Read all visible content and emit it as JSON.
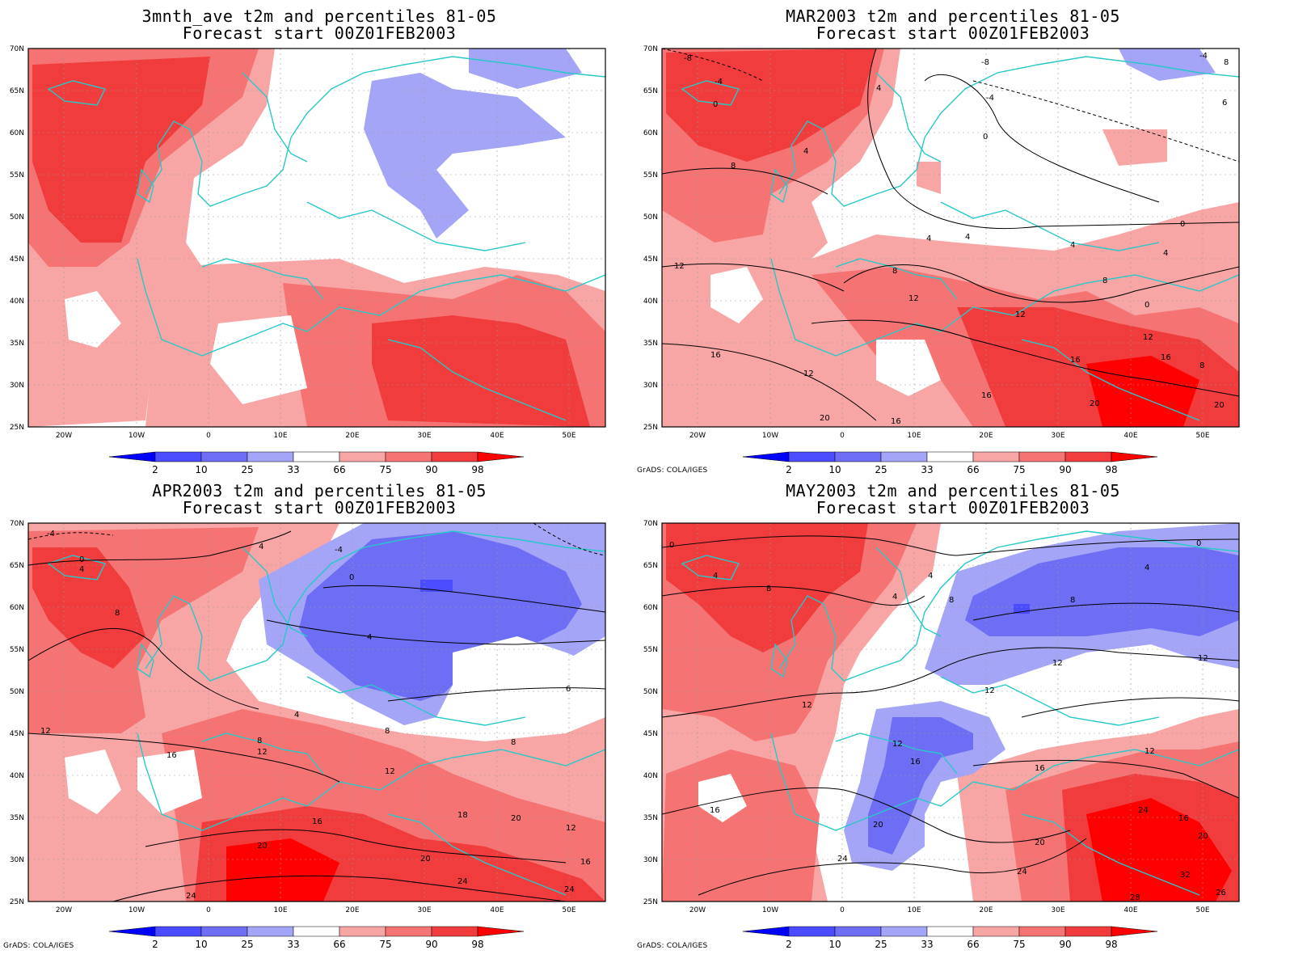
{
  "colors": {
    "p2": "#0000ff",
    "p10": "#4b4bff",
    "p25": "#6e6ef5",
    "p33": "#a5a5f8",
    "normal": "#ffffff",
    "p66": "#f8a5a5",
    "p75": "#f57373",
    "p90": "#f03c3c",
    "p98": "#ff0000",
    "coast": "#28c8c8",
    "contour": "#000000",
    "grid": "#999999"
  },
  "axes": {
    "lat_labels": [
      "70N",
      "65N",
      "60N",
      "55N",
      "50N",
      "45N",
      "40N",
      "35N",
      "30N",
      "25N"
    ],
    "lon_labels": [
      "20W",
      "10W",
      "0",
      "10E",
      "20E",
      "30E",
      "40E",
      "50E"
    ],
    "lat_range": [
      25,
      70
    ],
    "lon_range": [
      -25,
      55
    ]
  },
  "colorbar": {
    "labels": [
      "2",
      "10",
      "25",
      "33",
      "66",
      "75",
      "90",
      "98"
    ]
  },
  "credit": "GrADS: COLA/IGES",
  "panels": [
    {
      "title": "3mnth_ave t2m and percentiles 81-05",
      "subtitle": "Forecast start 00Z01FEB2003",
      "show_credit": false,
      "contour_labels": []
    },
    {
      "title": "MAR2003 t2m and percentiles 81-05",
      "subtitle": "Forecast start 00Z01FEB2003",
      "show_credit": true,
      "contour_labels": [
        "-8",
        "-4",
        "4",
        "0",
        "4",
        "8",
        "6",
        "-8",
        "-4",
        "0",
        "4",
        "8",
        "12",
        "16",
        "20",
        "12",
        "16",
        "12",
        "16",
        "4",
        "0",
        "8",
        "-4",
        "8",
        "12",
        "4",
        "0",
        "4",
        "12",
        "16",
        "8",
        "20",
        "16",
        "20"
      ]
    },
    {
      "title": "APR2003 t2m and percentiles 81-05",
      "subtitle": "Forecast start 00Z01FEB2003",
      "show_credit": true,
      "contour_labels": [
        "-4",
        "0",
        "4",
        "8",
        "4",
        "12",
        "16",
        "20",
        "24",
        "-4",
        "0",
        "4",
        "8",
        "8",
        "12",
        "12",
        "16",
        "20",
        "24",
        "4",
        "6",
        "8",
        "18",
        "20",
        "12",
        "16",
        "24"
      ]
    },
    {
      "title": "MAY2003 t2m and percentiles 81-05",
      "subtitle": "Forecast start 00Z01FEB2003",
      "show_credit": true,
      "contour_labels": [
        "0",
        "4",
        "8",
        "12",
        "16",
        "4",
        "8",
        "4",
        "12",
        "12",
        "16",
        "20",
        "24",
        "0",
        "4",
        "8",
        "12",
        "12",
        "16",
        "20",
        "24",
        "12",
        "16",
        "20",
        "24",
        "26",
        "28",
        "32"
      ]
    }
  ]
}
